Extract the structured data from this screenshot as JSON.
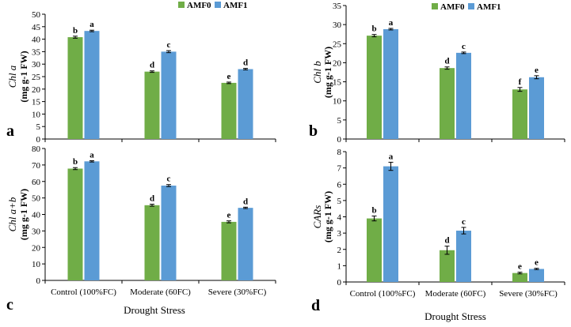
{
  "figure": {
    "xlabel": "Drought Stress",
    "legend": [
      "AMF0",
      "AMF1"
    ]
  },
  "colors": {
    "amf0": "#70ad47",
    "amf1": "#5b9bd5"
  },
  "chart_data": [
    {
      "type": "bar",
      "panel": "a",
      "ylabel_line1": "Chl a",
      "ylabel_line2": "(mg g-1 FW)",
      "ylim": [
        0,
        50
      ],
      "yticks": [
        0,
        5,
        10,
        15,
        20,
        25,
        30,
        35,
        40,
        45,
        50
      ],
      "categories": [
        "Control (100%FC)",
        "Moderate (60FC)",
        "Severe (30%FC)"
      ],
      "legend_position": "top",
      "series": [
        {
          "name": "AMF0",
          "values": [
            40.8,
            27.0,
            22.5
          ],
          "errors": [
            0.4,
            0.3,
            0.3
          ],
          "letters": [
            "b",
            "d",
            "e"
          ]
        },
        {
          "name": "AMF1",
          "values": [
            43.3,
            35.0,
            28.0
          ],
          "errors": [
            0.3,
            0.4,
            0.3
          ],
          "letters": [
            "a",
            "c",
            "d"
          ]
        }
      ]
    },
    {
      "type": "bar",
      "panel": "b",
      "ylabel_line1": "Chl b",
      "ylabel_line2": "(mg g-1 FW)",
      "ylim": [
        0,
        35
      ],
      "yticks": [
        0,
        5,
        10,
        15,
        20,
        25,
        30,
        35
      ],
      "categories": [
        "Control (100%FC)",
        "Moderate (60FC)",
        "Severe (30%FC)"
      ],
      "legend_position": "top",
      "series": [
        {
          "name": "AMF0",
          "values": [
            27.1,
            18.6,
            13.0
          ],
          "errors": [
            0.3,
            0.3,
            0.5
          ],
          "letters": [
            "b",
            "d",
            "f"
          ]
        },
        {
          "name": "AMF1",
          "values": [
            28.8,
            22.6,
            16.2
          ],
          "errors": [
            0.2,
            0.2,
            0.4
          ],
          "letters": [
            "a",
            "c",
            "e"
          ]
        }
      ]
    },
    {
      "type": "bar",
      "panel": "c",
      "ylabel_line1": "Chl a+b",
      "ylabel_line2": "(mg g-1 FW)",
      "ylim": [
        0,
        80
      ],
      "yticks": [
        0,
        10,
        20,
        30,
        40,
        50,
        60,
        70,
        80
      ],
      "categories": [
        "Control (100%FC)",
        "Moderate (60FC)",
        "Severe (30%FC)"
      ],
      "series": [
        {
          "name": "AMF0",
          "values": [
            67.8,
            45.6,
            35.5
          ],
          "errors": [
            0.6,
            0.6,
            0.6
          ],
          "letters": [
            "b",
            "d",
            "e"
          ]
        },
        {
          "name": "AMF1",
          "values": [
            72.2,
            57.5,
            44.0
          ],
          "errors": [
            0.4,
            0.6,
            0.4
          ],
          "letters": [
            "a",
            "c",
            "d"
          ]
        }
      ]
    },
    {
      "type": "bar",
      "panel": "d",
      "ylabel_line1": "CARs",
      "ylabel_line2": "(mg g-1 FW)",
      "ylim": [
        0,
        8
      ],
      "yticks": [
        0,
        1,
        2,
        3,
        4,
        5,
        6,
        7,
        8
      ],
      "categories": [
        "Control (100%FC)",
        "Moderate (60FC)",
        "Severe (30%FC)"
      ],
      "series": [
        {
          "name": "AMF0",
          "values": [
            3.9,
            1.95,
            0.55
          ],
          "errors": [
            0.15,
            0.25,
            0.05
          ],
          "letters": [
            "b",
            "d",
            "e"
          ]
        },
        {
          "name": "AMF1",
          "values": [
            7.1,
            3.15,
            0.8
          ],
          "errors": [
            0.25,
            0.2,
            0.04
          ],
          "letters": [
            "a",
            "c",
            "e"
          ]
        }
      ]
    }
  ]
}
